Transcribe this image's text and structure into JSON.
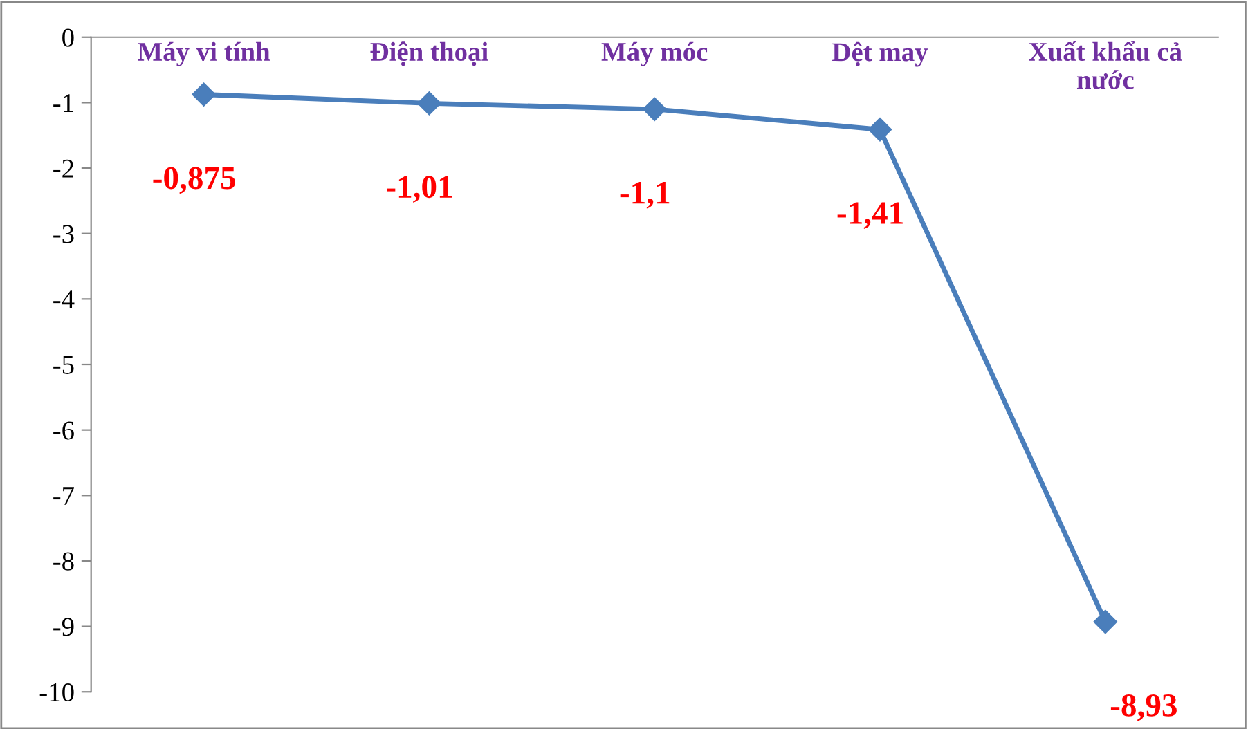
{
  "chart_data": {
    "type": "line",
    "categories": [
      "Máy vi tính",
      "Điện thoại",
      "Máy móc",
      "Dệt may",
      "Xuất khẩu cả\nnước"
    ],
    "series": [
      {
        "color": "#4a7ebb",
        "values": [
          -0.875,
          -1.01,
          -1.1,
          -1.41,
          -8.93
        ],
        "value_labels": [
          "-0,875",
          "-1,01",
          "-1,1",
          "-1,41",
          "-8,93"
        ]
      }
    ],
    "ylim": [
      -10,
      0
    ],
    "yticks": [
      0,
      -1,
      -2,
      -3,
      -4,
      -5,
      -6,
      -7,
      -8,
      -9,
      -10
    ],
    "marker": "diamond",
    "line_style": "solid",
    "grid": false,
    "legend": false
  }
}
